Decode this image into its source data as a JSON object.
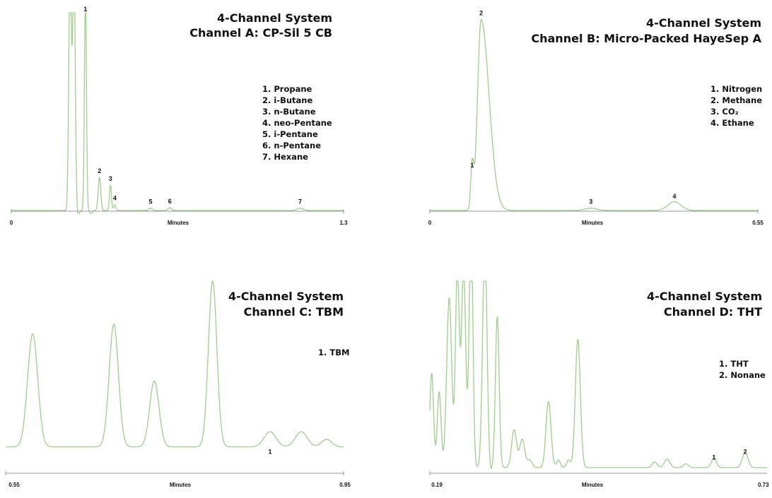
{
  "colors": {
    "trace": "#9ccf8a",
    "axis": "#9a9a9a",
    "text": "#111111"
  },
  "chart_data": [
    {
      "type": "line",
      "title": "4-Channel System",
      "subtitle": "Channel A: CP-Sil 5 CB",
      "xlabel": "Minutes",
      "ylabel": "",
      "xlim": [
        0,
        1.3
      ],
      "x_tick_labels": [
        "0",
        "1.3"
      ],
      "legend": [
        "1. Propane",
        "2. i-Butane",
        "3. n-Butane",
        "4. neo-Pentane",
        "5. i-Pentane",
        "6. n-Pentane",
        "7. Hexane"
      ],
      "peak_labels": [
        {
          "label": "1",
          "x": 0.29,
          "y": 1.0
        },
        {
          "label": "2",
          "x": 0.345,
          "y": 0.17
        },
        {
          "label": "3",
          "x": 0.388,
          "y": 0.13
        },
        {
          "label": "4",
          "x": 0.405,
          "y": 0.03
        },
        {
          "label": "5",
          "x": 0.545,
          "y": 0.012
        },
        {
          "label": "6",
          "x": 0.62,
          "y": 0.014
        },
        {
          "label": "7",
          "x": 1.13,
          "y": 0.012
        }
      ],
      "background": 0.0,
      "peaks": [
        {
          "x": 0.23,
          "h": 1.3,
          "w": 0.005
        },
        {
          "x": 0.245,
          "h": 1.3,
          "w": 0.005
        },
        {
          "x": 0.29,
          "h": 1.1,
          "w": 0.004
        },
        {
          "x": 0.345,
          "h": 0.17,
          "w": 0.005
        },
        {
          "x": 0.388,
          "h": 0.13,
          "w": 0.004
        },
        {
          "x": 0.405,
          "h": 0.03,
          "w": 0.004
        },
        {
          "x": 0.545,
          "h": 0.012,
          "w": 0.007
        },
        {
          "x": 0.62,
          "h": 0.014,
          "w": 0.007
        },
        {
          "x": 1.13,
          "h": 0.012,
          "w": 0.012
        }
      ],
      "dips": [
        {
          "x": 0.262,
          "d": 0.03,
          "w": 0.004
        },
        {
          "x": 0.312,
          "d": 0.025,
          "w": 0.004
        }
      ]
    },
    {
      "type": "line",
      "title": "4-Channel System",
      "subtitle": "Channel B: Micro-Packed HayeSep A",
      "xlabel": "Minutes",
      "ylabel": "",
      "xlim": [
        0,
        0.55
      ],
      "x_tick_labels": [
        "0",
        "0.55"
      ],
      "legend": [
        "1. Nitrogen",
        "2. Methane",
        "3. CO₂",
        "4. Ethane"
      ],
      "peak_labels": [
        {
          "label": "1",
          "x": 0.071,
          "y": 0.2
        },
        {
          "label": "2",
          "x": 0.086,
          "y": 0.98
        },
        {
          "label": "3",
          "x": 0.27,
          "y": 0.012
        },
        {
          "label": "4",
          "x": 0.41,
          "y": 0.04
        }
      ],
      "background": 0.0,
      "peaks": [
        {
          "x": 0.071,
          "h": 0.22,
          "w": 0.0025
        },
        {
          "x": 0.086,
          "h": 0.98,
          "w": 0.006,
          "tail": 2.2
        },
        {
          "x": 0.27,
          "h": 0.012,
          "w": 0.01
        },
        {
          "x": 0.41,
          "h": 0.045,
          "w": 0.011
        }
      ],
      "dips": []
    },
    {
      "type": "line",
      "title": "4-Channel System",
      "subtitle": "Channel C: TBM",
      "xlabel": "Minutes",
      "ylabel": "",
      "xlim": [
        0.55,
        0.95
      ],
      "x_tick_labels": [
        "0.55",
        "0.95"
      ],
      "legend": [
        "1. TBM"
      ],
      "peak_labels": [
        {
          "label": "1",
          "x": 0.863,
          "y": 0.08
        }
      ],
      "background": 0.14,
      "peaks": [
        {
          "x": 0.582,
          "h": 0.6,
          "w": 0.006
        },
        {
          "x": 0.678,
          "h": 0.65,
          "w": 0.0055
        },
        {
          "x": 0.726,
          "h": 0.35,
          "w": 0.0055
        },
        {
          "x": 0.795,
          "h": 0.88,
          "w": 0.005
        },
        {
          "x": 0.863,
          "h": 0.08,
          "w": 0.007
        },
        {
          "x": 0.9,
          "h": 0.08,
          "w": 0.007
        },
        {
          "x": 0.93,
          "h": 0.04,
          "w": 0.006
        }
      ],
      "dips": []
    },
    {
      "type": "line",
      "title": "4-Channel System",
      "subtitle": "Channel D: THT",
      "xlabel": "Minutes",
      "ylabel": "",
      "xlim": [
        0.19,
        0.73
      ],
      "x_tick_labels": [
        "0.19",
        "0.73"
      ],
      "legend": [
        "1. THT",
        "2. Nonane"
      ],
      "peak_labels": [
        {
          "label": "1",
          "x": 0.645,
          "y": 0.05
        },
        {
          "label": "2",
          "x": 0.695,
          "y": 0.08
        }
      ],
      "background": 0.03,
      "peaks": [
        {
          "x": 0.193,
          "h": 0.5,
          "w": 0.003
        },
        {
          "x": 0.205,
          "h": 0.4,
          "w": 0.003
        },
        {
          "x": 0.221,
          "h": 0.9,
          "w": 0.004
        },
        {
          "x": 0.234,
          "h": 1.05,
          "w": 0.003
        },
        {
          "x": 0.244,
          "h": 1.05,
          "w": 0.0035
        },
        {
          "x": 0.256,
          "h": 1.3,
          "w": 0.003
        },
        {
          "x": 0.278,
          "h": 1.2,
          "w": 0.0035
        },
        {
          "x": 0.298,
          "h": 0.8,
          "w": 0.003
        },
        {
          "x": 0.325,
          "h": 0.2,
          "w": 0.004
        },
        {
          "x": 0.338,
          "h": 0.15,
          "w": 0.004
        },
        {
          "x": 0.35,
          "h": 0.04,
          "w": 0.004
        },
        {
          "x": 0.38,
          "h": 0.35,
          "w": 0.004
        },
        {
          "x": 0.396,
          "h": 0.04,
          "w": 0.003
        },
        {
          "x": 0.412,
          "h": 0.04,
          "w": 0.003
        },
        {
          "x": 0.427,
          "h": 0.68,
          "w": 0.004
        },
        {
          "x": 0.55,
          "h": 0.03,
          "w": 0.004
        },
        {
          "x": 0.57,
          "h": 0.045,
          "w": 0.0045
        },
        {
          "x": 0.6,
          "h": 0.02,
          "w": 0.004
        },
        {
          "x": 0.645,
          "h": 0.05,
          "w": 0.004
        },
        {
          "x": 0.695,
          "h": 0.08,
          "w": 0.0045
        }
      ],
      "dips": [
        {
          "x": 0.261,
          "d": 0.03,
          "w": 0.002
        },
        {
          "x": 0.287,
          "d": 0.03,
          "w": 0.002
        }
      ]
    }
  ]
}
